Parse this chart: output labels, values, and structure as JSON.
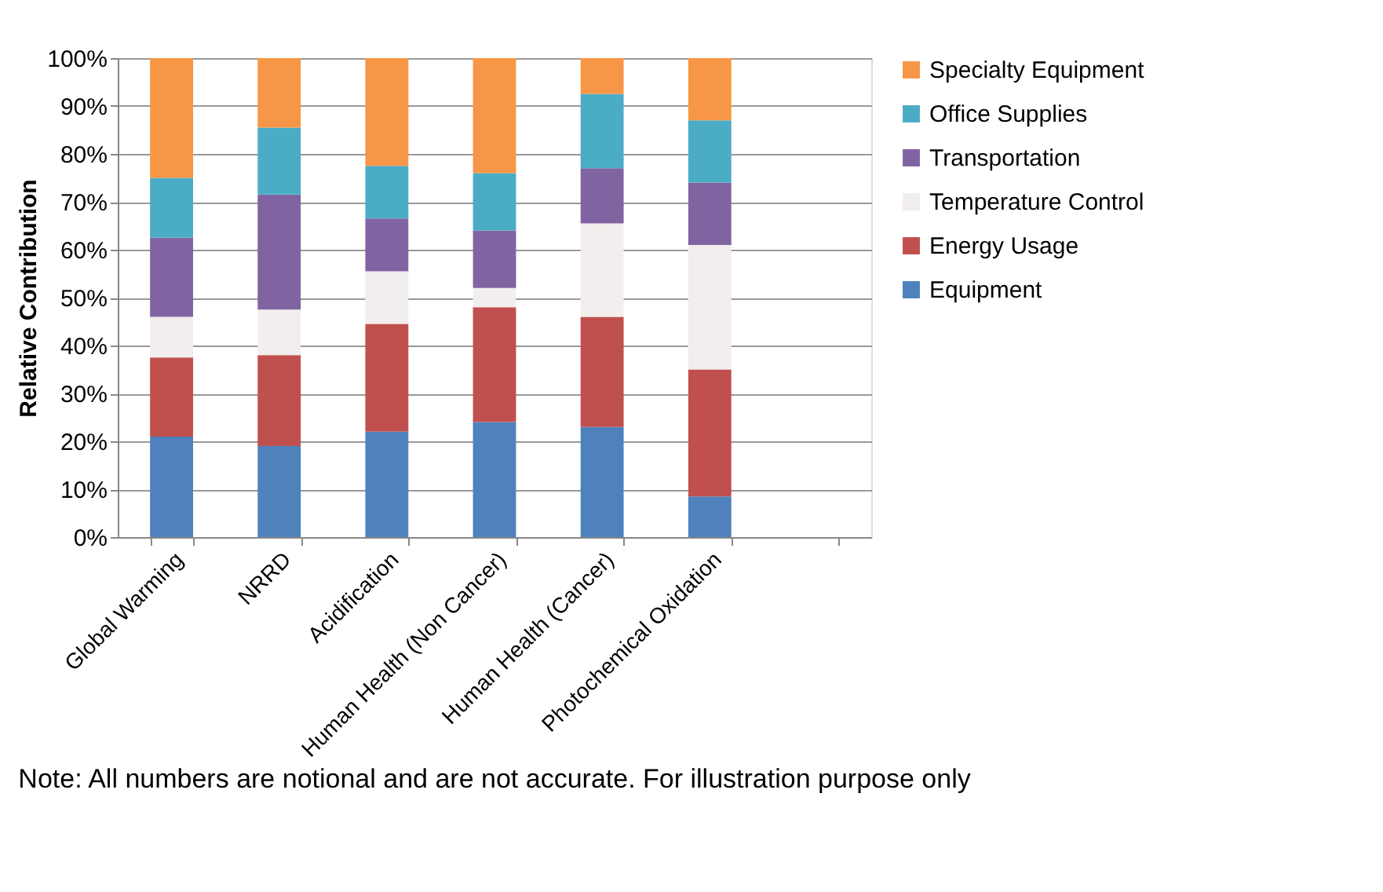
{
  "chart_data": {
    "type": "bar",
    "stacked": true,
    "ylabel": "Relative Contribution",
    "categories": [
      "Global Warming",
      "NRRD",
      "Acidification",
      "Human Health (Non Cancer)",
      "Human Health (Cancer)",
      "Photochemical Oxidation",
      null
    ],
    "series": [
      {
        "name": "Equipment",
        "color": "#4f81bd",
        "values": [
          21,
          19,
          22,
          24,
          23,
          8.5,
          null
        ]
      },
      {
        "name": "Energy Usage",
        "color": "#c0504d",
        "values": [
          16.5,
          19,
          22.5,
          24,
          23,
          26.5,
          null
        ]
      },
      {
        "name": "Temperature Control",
        "color": "#f2eeee",
        "values": [
          8.5,
          9.5,
          11,
          4,
          19.5,
          26,
          null
        ]
      },
      {
        "name": "Transportation",
        "color": "#8064a2",
        "values": [
          16.5,
          24,
          11,
          12,
          11.5,
          13,
          null
        ]
      },
      {
        "name": "Office Supplies",
        "color": "#4bacc6",
        "values": [
          12.5,
          14,
          11,
          12,
          15.5,
          13,
          null
        ]
      },
      {
        "name": "Specialty Equipment",
        "color": "#f79646",
        "values": [
          25,
          14.5,
          22.5,
          24,
          7.5,
          13,
          null
        ]
      }
    ],
    "ylim": [
      0,
      100
    ],
    "yticks": [
      {
        "value": 0,
        "label": "0%"
      },
      {
        "value": 10,
        "label": "10%"
      },
      {
        "value": 20,
        "label": "20%"
      },
      {
        "value": 30,
        "label": "30%"
      },
      {
        "value": 40,
        "label": "40%"
      },
      {
        "value": 50,
        "label": "50%"
      },
      {
        "value": 60,
        "label": "60%"
      },
      {
        "value": 70,
        "label": "70%"
      },
      {
        "value": 80,
        "label": "80%"
      },
      {
        "value": 90,
        "label": "90%"
      },
      {
        "value": 100,
        "label": "100%"
      }
    ],
    "grid": "y",
    "legend": "right",
    "annotations": [
      "Note: All numbers are notional and are not accurate. For illustration purpose only"
    ]
  }
}
